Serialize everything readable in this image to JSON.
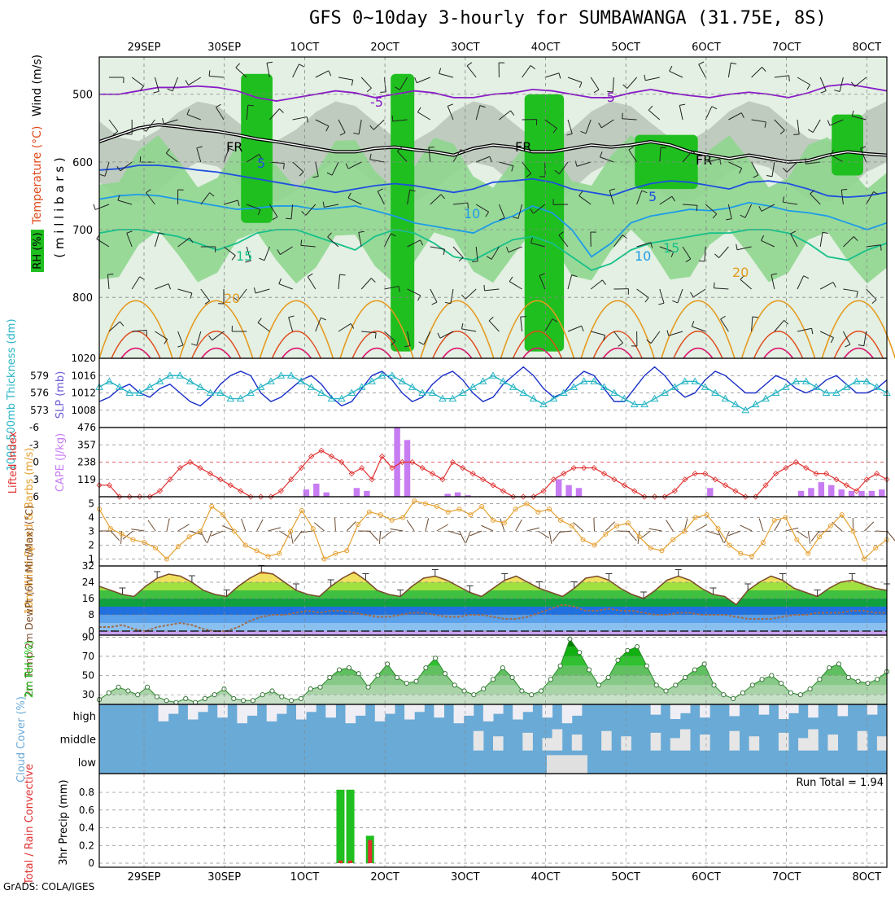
{
  "header": {
    "title": "GFS 0~10day 3-hourly for SUMBAWANGA (31.75E, 8S)",
    "credit": "GrADS: COLA/IGES"
  },
  "colors": {
    "rh_dark": "#1fbf1f",
    "rh_mid": "#8fd68f",
    "rh_light": "#e3f0e3",
    "rh_gray": "#b9c7b9",
    "temp_purple": "#8a1cc7",
    "temp_blue": "#1e4fe0",
    "temp_lightblue": "#1e9be8",
    "temp_teal": "#17c08a",
    "temp_orange": "#e69a1f",
    "temp_red": "#e04a1a",
    "temp_magenta": "#e0146e",
    "slp": "#1a2fc8",
    "thickness": "#29b5c4",
    "lifted": "#e03030",
    "cape": "#c77cf2",
    "wind_speed": "#e6a030",
    "wind_barb": "#6b4a30",
    "dewpoint": "#a06a4a",
    "cloud": "#6aaad6",
    "cloud_clear": "#f0eef5",
    "precip_total": "#1fbf1f",
    "precip_conv": "#e03030"
  },
  "chart_data": [
    {
      "type": "heatmap",
      "name": "upper-air",
      "ylabels": {
        "wind": "Wind (m/s)",
        "temperature": "Temperature (°C)",
        "rh": "RH (%)",
        "pressure": "( m i l l i b a r s )"
      },
      "yticks": [
        "500",
        "600",
        "700",
        "800"
      ],
      "ylim": [
        445,
        890
      ],
      "xticks_top": [
        "29SEP",
        "30SEP",
        "1OCT",
        "2OCT",
        "3OCT",
        "4OCT",
        "5OCT",
        "6OCT",
        "7OCT",
        "8OCT"
      ],
      "contour_labels": [
        "-5",
        "-5",
        "FR",
        "FR",
        "FR",
        "5",
        "5",
        "10",
        "10",
        "15",
        "15",
        "20",
        "20"
      ],
      "isotherms": [
        {
          "level": "-5",
          "color": "#8a1cc7",
          "p": [
            500,
            500,
            495,
            490,
            490,
            488,
            490,
            495,
            505,
            510,
            505,
            500,
            495,
            498,
            505,
            500,
            495,
            498,
            505,
            505,
            500,
            498,
            493,
            495,
            500,
            505,
            505,
            498,
            493,
            498,
            502,
            505,
            500,
            497,
            500,
            505,
            498,
            488,
            485,
            490,
            495
          ]
        },
        {
          "level": "FR",
          "color": "#000000",
          "p": [
            570,
            560,
            550,
            545,
            548,
            552,
            555,
            560,
            566,
            570,
            575,
            580,
            585,
            585,
            580,
            578,
            582,
            585,
            590,
            580,
            575,
            578,
            585,
            585,
            580,
            575,
            578,
            575,
            570,
            575,
            585,
            590,
            595,
            590,
            595,
            600,
            598,
            590,
            585,
            588,
            590
          ]
        },
        {
          "level": "5",
          "color": "#1e4fe0",
          "p": [
            612,
            610,
            605,
            605,
            608,
            612,
            615,
            620,
            625,
            630,
            635,
            640,
            645,
            640,
            635,
            632,
            635,
            640,
            645,
            640,
            630,
            628,
            625,
            630,
            640,
            645,
            650,
            640,
            632,
            628,
            630,
            635,
            640,
            630,
            628,
            632,
            640,
            650,
            652,
            650,
            645
          ]
        },
        {
          "level": "10",
          "color": "#1e9be8",
          "p": [
            655,
            650,
            648,
            650,
            655,
            660,
            665,
            670,
            668,
            665,
            665,
            670,
            668,
            665,
            672,
            680,
            690,
            695,
            700,
            705,
            690,
            680,
            665,
            675,
            700,
            740,
            720,
            690,
            680,
            675,
            670,
            672,
            668,
            660,
            665,
            672,
            675,
            680,
            690,
            700,
            690
          ]
        },
        {
          "level": "15",
          "color": "#17c08a",
          "p": [
            705,
            700,
            700,
            705,
            710,
            720,
            730,
            720,
            705,
            700,
            700,
            710,
            720,
            730,
            710,
            700,
            705,
            720,
            740,
            745,
            730,
            715,
            710,
            720,
            740,
            760,
            750,
            730,
            720,
            715,
            710,
            705,
            705,
            700,
            700,
            705,
            720,
            740,
            745,
            730,
            720
          ]
        }
      ],
      "rh_regions": [
        {
          "x": [
            18,
            22
          ],
          "p": [
            470,
            690
          ],
          "level": "dark"
        },
        {
          "x": [
            37,
            40
          ],
          "p": [
            470,
            880
          ],
          "level": "dark"
        },
        {
          "x": [
            54,
            59
          ],
          "p": [
            500,
            880
          ],
          "level": "dark"
        },
        {
          "x": [
            68,
            76
          ],
          "p": [
            560,
            640
          ],
          "level": "dark"
        },
        {
          "x": [
            93,
            97
          ],
          "p": [
            530,
            620
          ],
          "level": "dark"
        }
      ]
    },
    {
      "type": "line",
      "name": "slp-thickness",
      "ylabel_left": "1000-500mb Thickness (dm)",
      "ylabel_right": "SLP (mb)",
      "left_ticks": [
        "579",
        "576",
        "573"
      ],
      "right_ticks": [
        "1020",
        "1016",
        "1012",
        "1008"
      ],
      "slp_ylim": [
        1004,
        1020
      ],
      "thickness_ylim": [
        570,
        582
      ],
      "series": [
        {
          "name": "",
          "color": "#1a2fc8",
          "values": [
            1010,
            1011,
            1013,
            1014,
            1012,
            1011,
            1013,
            1014,
            1012,
            1010,
            1009,
            1011,
            1014,
            1016,
            1017,
            1016,
            1012,
            1010,
            1011,
            1013,
            1015,
            1016,
            1014,
            1011,
            1009,
            1010,
            1013,
            1016,
            1017,
            1015,
            1012,
            1010,
            1011,
            1014,
            1016,
            1017,
            1015,
            1012,
            1010,
            1011,
            1014,
            1016,
            1018,
            1016,
            1013,
            1011,
            1012,
            1015,
            1017,
            1016,
            1013,
            1010,
            1010,
            1013,
            1016,
            1018,
            1016,
            1013,
            1011,
            1012,
            1015,
            1017,
            1016,
            1014,
            1012,
            1012,
            1014,
            1016,
            1015,
            1013,
            1012,
            1013,
            1015,
            1016,
            1014,
            1012,
            1012,
            1013,
            1015
          ]
        },
        {
          "name": "",
          "color": "#29b5c4",
          "values": [
            577,
            578,
            577,
            576,
            576,
            577,
            578,
            579,
            579,
            578,
            577,
            576,
            576,
            575,
            575,
            576,
            577,
            578,
            579,
            579,
            578,
            577,
            576,
            575,
            575,
            576,
            577,
            578,
            579,
            579,
            578,
            577,
            576,
            576,
            575,
            575,
            576,
            577,
            578,
            579,
            578,
            577,
            576,
            575,
            574,
            575,
            576,
            577,
            578,
            578,
            577,
            576,
            575,
            574,
            574,
            575,
            576,
            577,
            578,
            578,
            577,
            576,
            575,
            574,
            573,
            574,
            575,
            576,
            577,
            578,
            578,
            577,
            576,
            576,
            577,
            578,
            578,
            577,
            576
          ]
        }
      ]
    },
    {
      "type": "bar",
      "name": "lifted-cape",
      "ylabel_left": "Lifted Index",
      "ylabel_right": "CAPE (J/kg)",
      "li_ticks": [
        "-6",
        "-3",
        "0",
        "3",
        "6"
      ],
      "cape_ticks": [
        "476",
        "357",
        "238",
        "119"
      ],
      "li_ylim": [
        -6,
        6
      ],
      "cape_ylim": [
        0,
        476
      ],
      "lifted_index": [
        4,
        4,
        6,
        6,
        6,
        6,
        5,
        3,
        1,
        0,
        1,
        2,
        3,
        4,
        5,
        6,
        6,
        6,
        5,
        3,
        1,
        -1,
        -2,
        -1,
        0,
        2,
        1,
        3,
        -1,
        1,
        0,
        0,
        1,
        2,
        3,
        0,
        1,
        2,
        3,
        4,
        5,
        6,
        6,
        6,
        5,
        3,
        2,
        1,
        1,
        1,
        2,
        3,
        4,
        5,
        6,
        6,
        6,
        5,
        3,
        2,
        2,
        3,
        4,
        5,
        6,
        6,
        4,
        2,
        1,
        0,
        1,
        2,
        2,
        3,
        4,
        5,
        3,
        2,
        3
      ],
      "cape": [
        0,
        0,
        0,
        0,
        0,
        0,
        0,
        0,
        0,
        0,
        0,
        0,
        0,
        0,
        0,
        0,
        0,
        0,
        0,
        0,
        50,
        90,
        30,
        0,
        0,
        60,
        40,
        0,
        0,
        476,
        390,
        0,
        0,
        0,
        20,
        30,
        10,
        0,
        0,
        0,
        0,
        0,
        0,
        0,
        0,
        120,
        80,
        60,
        0,
        0,
        0,
        0,
        0,
        0,
        0,
        0,
        0,
        0,
        0,
        0,
        60,
        0,
        0,
        0,
        0,
        0,
        0,
        0,
        0,
        40,
        60,
        100,
        80,
        50,
        40,
        40,
        40,
        50
      ]
    },
    {
      "type": "line",
      "name": "wind-10m",
      "ylabel": "10m Wind Speed & Barbs (m/s)",
      "yticks": [
        "5",
        "4",
        "3",
        "2",
        "1"
      ],
      "ylim": [
        0.5,
        5.5
      ],
      "series": [
        {
          "name": "",
          "color": "#e6a030",
          "values": [
            4.6,
            3.2,
            2.8,
            2.4,
            2.2,
            1.8,
            1.0,
            1.9,
            2.6,
            3.0,
            4.8,
            4.2,
            3.0,
            2.0,
            1.6,
            1.2,
            1.4,
            3.0,
            4.5,
            3.2,
            1.0,
            1.4,
            1.6,
            3.5,
            4.4,
            4.2,
            3.8,
            4.0,
            5.2,
            5.0,
            4.8,
            4.4,
            4.6,
            4.2,
            4.8,
            3.8,
            3.6,
            4.6,
            5.0,
            4.4,
            4.6,
            3.8,
            3.4,
            2.4,
            2.0,
            2.8,
            3.4,
            3.6,
            2.6,
            1.8,
            1.6,
            2.4,
            3.0,
            4.0,
            4.2,
            3.2,
            2.0,
            1.4,
            1.2,
            2.2,
            3.8,
            4.0,
            2.4,
            1.4,
            2.6,
            3.4,
            4.2,
            3.0,
            1.0,
            1.8,
            2.4
          ]
        }
      ]
    },
    {
      "type": "area",
      "name": "temp-dewpt",
      "ylabel": "2m Temp 2m DewPt (6hr Min/Max) (°C)",
      "yticks": [
        "32",
        "24",
        "16",
        "8",
        "0"
      ],
      "ylim": [
        -2,
        32
      ],
      "series": [
        {
          "name": "",
          "color": "#7a4a2a",
          "values": [
            22,
            20,
            18,
            17,
            22,
            26,
            28,
            27,
            24,
            20,
            18,
            17,
            22,
            26,
            29,
            28,
            24,
            20,
            18,
            17,
            22,
            26,
            29,
            25,
            20,
            18,
            17,
            22,
            26,
            27,
            25,
            22,
            19,
            17,
            21,
            25,
            27,
            24,
            21,
            19,
            17,
            21,
            26,
            27,
            25,
            21,
            18,
            16,
            20,
            25,
            27,
            25,
            21,
            18,
            17,
            13,
            20,
            24,
            27,
            25,
            21,
            19,
            17,
            21,
            24,
            25,
            23,
            21,
            20
          ]
        },
        {
          "name": "",
          "color": "#a06a4a",
          "values": [
            2,
            2,
            3,
            1,
            0,
            2,
            3,
            4,
            3,
            1,
            0,
            0,
            2,
            5,
            7,
            8,
            8,
            9,
            10,
            9,
            10,
            10,
            9,
            8,
            7,
            7,
            8,
            9,
            9,
            8,
            7,
            7,
            8,
            8,
            7,
            6,
            6,
            7,
            9,
            11,
            13,
            12,
            10,
            10,
            11,
            10,
            10,
            9,
            8,
            8,
            9,
            9,
            8,
            8,
            8,
            7,
            6,
            6,
            6,
            7,
            8,
            8,
            9,
            9,
            9,
            10,
            10,
            9,
            9
          ]
        }
      ]
    },
    {
      "type": "area",
      "name": "rh-2m",
      "ylabel": "2m RH (%)",
      "yticks": [
        "90",
        "70",
        "50",
        "30"
      ],
      "ylim": [
        20,
        92
      ],
      "series": [
        {
          "name": "",
          "color": "#2a8a2a",
          "values": [
            25,
            32,
            38,
            34,
            30,
            38,
            28,
            24,
            22,
            26,
            22,
            26,
            30,
            36,
            26,
            24,
            24,
            30,
            34,
            28,
            24,
            26,
            36,
            38,
            48,
            56,
            58,
            52,
            38,
            50,
            62,
            48,
            42,
            44,
            58,
            68,
            52,
            40,
            34,
            30,
            36,
            46,
            58,
            48,
            34,
            30,
            34,
            46,
            60,
            88,
            74,
            56,
            40,
            48,
            66,
            76,
            80,
            60,
            40,
            34,
            40,
            48,
            56,
            62,
            40,
            30,
            26,
            32,
            40,
            46,
            50,
            42,
            32,
            30,
            36,
            46,
            58,
            62,
            48,
            44,
            42,
            46,
            54
          ]
        }
      ]
    },
    {
      "type": "bar",
      "name": "cloud-cover",
      "ylabel": "Cloud Cover (%)",
      "levels": [
        "high",
        "middle",
        "low"
      ]
    },
    {
      "type": "bar",
      "name": "precip",
      "ylabel_left": "Total / Rain Convective",
      "ylabel": "3hr Precip (mm)",
      "annotation": "Run Total = 1.94",
      "yticks": [
        "0.8",
        "0.6",
        "0.4",
        "0.2",
        "0"
      ],
      "ylim": [
        0,
        0.92
      ],
      "bars": [
        {
          "x": 24.5,
          "total": 0.83,
          "conv": 0.03
        },
        {
          "x": 25.5,
          "total": 0.83,
          "conv": 0.03
        },
        {
          "x": 27.5,
          "total": 0.31,
          "conv": 0.26
        }
      ],
      "xticks_bottom": [
        "29SEP",
        "30SEP",
        "1OCT",
        "2OCT",
        "3OCT",
        "4OCT",
        "5OCT",
        "6OCT",
        "7OCT",
        "8OCT"
      ]
    }
  ]
}
